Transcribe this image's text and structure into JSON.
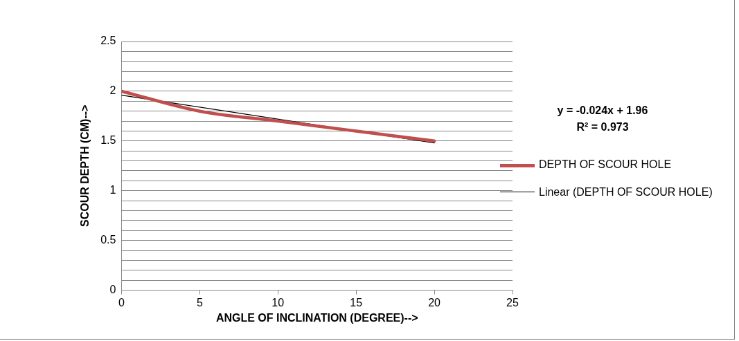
{
  "chart_data": {
    "type": "line",
    "xlabel": "ANGLE OF INCLINATION (DEGREE)-->",
    "ylabel": "SCOUR DEPTH (CM)-->",
    "x": [
      0,
      5,
      10,
      15,
      20
    ],
    "series": [
      {
        "name": "DEPTH OF SCOUR HOLE",
        "color": "#c0504d",
        "values": [
          2.0,
          1.8,
          1.7,
          1.6,
          1.5
        ]
      },
      {
        "name": "Linear (DEPTH OF SCOUR HOLE)",
        "type": "line",
        "color": "#000000",
        "x": [
          0,
          20
        ],
        "values": [
          1.96,
          1.48
        ]
      }
    ],
    "xlim": [
      0,
      25
    ],
    "xticks": [
      0,
      5,
      10,
      15,
      20,
      25
    ],
    "ylim": [
      0,
      2.5
    ],
    "yticks": [
      0,
      {
        "value": 0.1,
        "label": null
      },
      {
        "value": 0.2,
        "label": null
      },
      {
        "value": 0.3,
        "label": null
      },
      {
        "value": 0.4,
        "label": null
      },
      0.5,
      {
        "value": 0.6,
        "label": null
      },
      {
        "value": 0.7,
        "label": null
      },
      {
        "value": 0.8,
        "label": null
      },
      {
        "value": 0.9,
        "label": null
      },
      1,
      {
        "value": 1.1,
        "label": null
      },
      {
        "value": 1.2,
        "label": null
      },
      {
        "value": 1.3,
        "label": null
      },
      {
        "value": 1.4,
        "label": null
      },
      1.5,
      {
        "value": 1.6,
        "label": null
      },
      {
        "value": 1.7,
        "label": null
      },
      {
        "value": 1.8,
        "label": null
      },
      {
        "value": 1.9,
        "label": null
      },
      2,
      {
        "value": 2.1,
        "label": null
      },
      {
        "value": 2.2,
        "label": null
      },
      {
        "value": 2.3,
        "label": null
      },
      {
        "value": 2.4,
        "label": null
      },
      2.5
    ],
    "annotations": [
      "y = -0.024x + 1.96",
      "R² = 0.973"
    ],
    "grid": "y",
    "legend": "right",
    "marker": "none",
    "line_style": "solid"
  }
}
